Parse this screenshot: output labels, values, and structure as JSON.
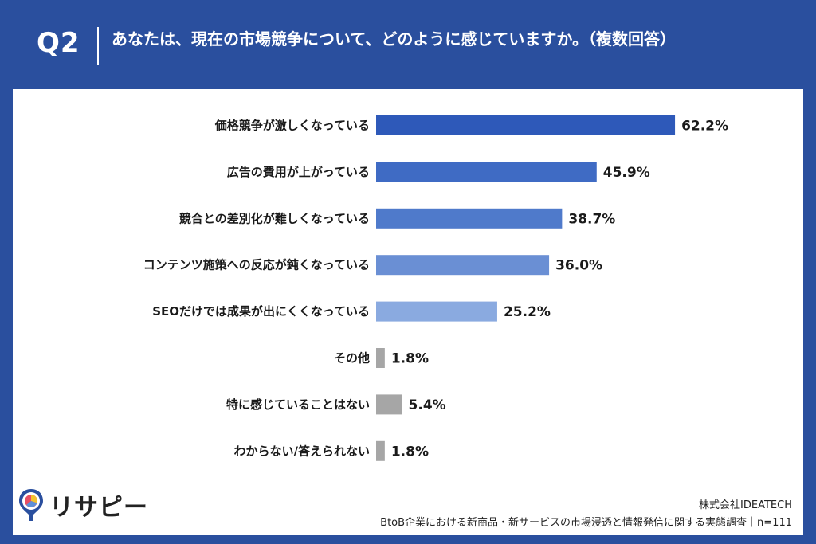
{
  "header": {
    "question_number": "Q2",
    "question_text": "あなたは、現在の市場競争について、どのように感じていますか。（複数回答）"
  },
  "brand": {
    "name": "リサピー"
  },
  "footer": {
    "company": "株式会社IDEATECH",
    "survey": "BtoB企業における新商品・新サービスの市場浸透と情報発信に関する実態調査｜n=111"
  },
  "colors": {
    "header_bg": "#2a4f9e",
    "bar_shades": [
      "#2e59b9",
      "#3f6bc4",
      "#4f7acb",
      "#6a8fd4",
      "#8aaae0"
    ],
    "bar_gray": "#a6a6a6"
  },
  "chart_data": {
    "type": "bar",
    "orientation": "horizontal",
    "categories": [
      "価格競争が激しくなっている",
      "広告の費用が上がっている",
      "競合との差別化が難しくなっている",
      "コンテンツ施策への反応が鈍くなっている",
      "SEOだけでは成果が出にくくなっている",
      "その他",
      "特に感じていることはない",
      "わからない/答えられない"
    ],
    "values": [
      62.2,
      45.9,
      38.7,
      36.0,
      25.2,
      1.8,
      5.4,
      1.8
    ],
    "value_labels": [
      "62.2%",
      "45.9%",
      "38.7%",
      "36.0%",
      "25.2%",
      "1.8%",
      "5.4%",
      "1.8%"
    ],
    "unit": "%",
    "xlim": [
      0,
      100
    ],
    "grid": false,
    "legend": "none"
  }
}
